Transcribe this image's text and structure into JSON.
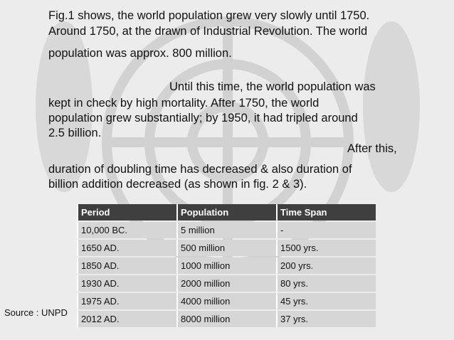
{
  "body": {
    "lines": [
      "Fig.1 shows, the world population grew very slowly until 1750.",
      "Around 1750, at the drawn of Industrial Revolution. The world",
      "population was approx. 800 million.",
      "Until this time, the world population was",
      "kept in check by high mortality. After 1750, the world",
      "population grew substantially; by 1950, it had tripled around",
      "2.5 billion.",
      "After this,",
      "duration of doubling time has decreased & also duration of",
      "billion addition decreased (as shown in fig. 2 & 3)."
    ]
  },
  "table": {
    "header": [
      "Period",
      "Population",
      "Time Span"
    ],
    "rows": [
      [
        "10,000 BC.",
        "5 million",
        "-"
      ],
      [
        "1650 AD.",
        "500 million",
        "1500 yrs."
      ],
      [
        "1850 AD.",
        "1000 million",
        "200 yrs."
      ],
      [
        "1930 AD.",
        "2000 million",
        "80 yrs."
      ],
      [
        "1975 AD.",
        "4000 million",
        "45 yrs."
      ],
      [
        "2012 AD.",
        "8000 million",
        "37 yrs."
      ]
    ]
  },
  "source": "Source : UNPD"
}
